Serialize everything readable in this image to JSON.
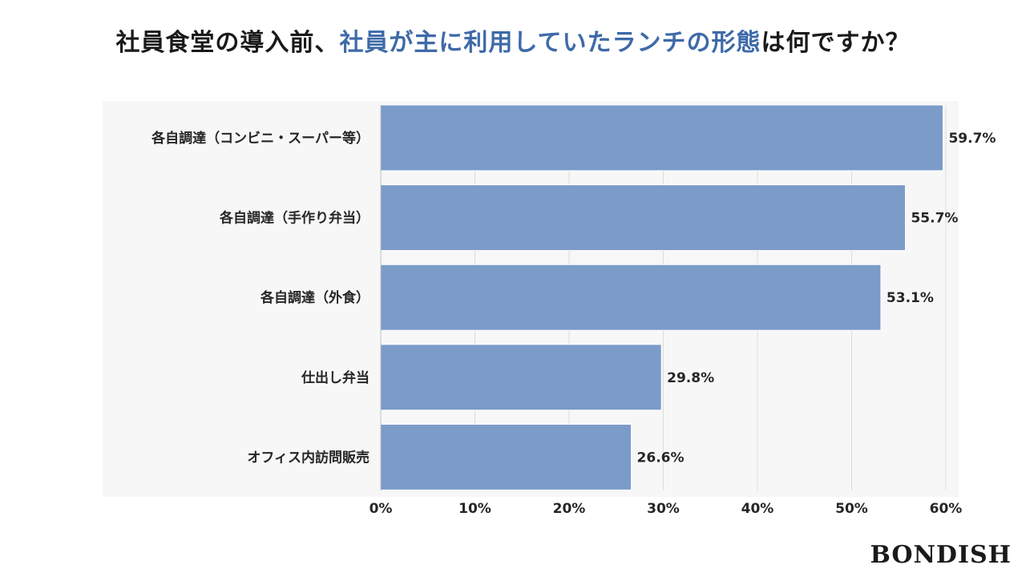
{
  "title": {
    "part1": "社員食堂の導入前、",
    "highlight": "社員が主に利用していたランチの形態",
    "part2": "は何ですか？"
  },
  "colors": {
    "bar": "#7b9bc9",
    "highlight": "#3e6aa8",
    "grid": "#dcdcdc"
  },
  "chart_data": {
    "type": "bar",
    "orientation": "horizontal",
    "title": "社員食堂の導入前、社員が主に利用していたランチの形態は何ですか？",
    "categories": [
      "各自調達（コンビニ・スーパー等）",
      "各自調達（手作り弁当）",
      "各自調達（外食）",
      "仕出し弁当",
      "オフィス内訪問販売"
    ],
    "values": [
      59.7,
      55.7,
      53.1,
      29.8,
      26.6
    ],
    "value_labels": [
      "59.7%",
      "55.7%",
      "53.1%",
      "29.8%",
      "26.6%"
    ],
    "xlim": [
      0,
      60
    ],
    "xticks": [
      0,
      10,
      20,
      30,
      40,
      50,
      60
    ],
    "xtick_labels": [
      "0%",
      "10%",
      "20%",
      "30%",
      "40%",
      "50%",
      "60%"
    ],
    "grid": true,
    "legend": "none"
  },
  "brand": {
    "logo_text": "BONDISH"
  }
}
